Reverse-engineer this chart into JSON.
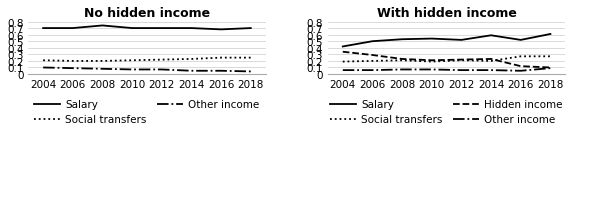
{
  "years": [
    2004,
    2006,
    2008,
    2010,
    2012,
    2014,
    2016,
    2018
  ],
  "left": {
    "title": "No hidden income",
    "salary": [
      0.7,
      0.7,
      0.74,
      0.7,
      0.7,
      0.7,
      0.68,
      0.7
    ],
    "social_transfers": [
      0.21,
      0.2,
      0.2,
      0.21,
      0.22,
      0.23,
      0.25,
      0.25
    ],
    "other_income": [
      0.1,
      0.09,
      0.08,
      0.07,
      0.07,
      0.05,
      0.05,
      0.04
    ],
    "ylim": [
      0,
      0.8
    ],
    "yticks": [
      0,
      0.1,
      0.2,
      0.3,
      0.4,
      0.5,
      0.6,
      0.7,
      0.8
    ]
  },
  "right": {
    "title": "With hidden income",
    "salary": [
      0.42,
      0.5,
      0.53,
      0.54,
      0.52,
      0.59,
      0.52,
      0.61
    ],
    "social_transfers": [
      0.19,
      0.2,
      0.21,
      0.19,
      0.21,
      0.2,
      0.27,
      0.27
    ],
    "hidden_income": [
      0.34,
      0.29,
      0.23,
      0.21,
      0.22,
      0.23,
      0.12,
      0.1
    ],
    "other_income": [
      0.06,
      0.06,
      0.07,
      0.07,
      0.06,
      0.06,
      0.05,
      0.09
    ],
    "ylim": [
      0,
      0.8
    ],
    "yticks": [
      0,
      0.1,
      0.2,
      0.3,
      0.4,
      0.5,
      0.6,
      0.7,
      0.8
    ]
  },
  "color": "#000000",
  "legend_fontsize": 7.5,
  "title_fontsize": 9,
  "tick_fontsize": 7.5
}
